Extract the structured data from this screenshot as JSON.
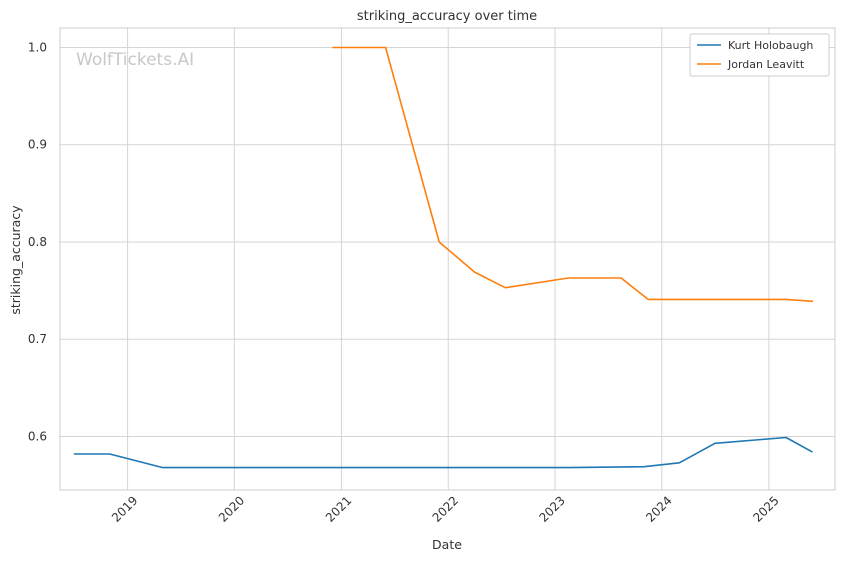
{
  "watermark": "WolfTickets.AI",
  "colors": {
    "background": "#ffffff",
    "grid": "#d5d5d5",
    "axes_frame": "#cccccc",
    "text": "#333333",
    "watermark": "#c8c8c8"
  },
  "chart_data": {
    "type": "line",
    "title": "striking_accuracy over time",
    "xlabel": "Date",
    "ylabel": "striking_accuracy",
    "xlim": [
      "2018-05-15",
      "2025-08-15"
    ],
    "ylim": [
      0.545,
      1.02
    ],
    "x_ticks": [
      "2019-01-01",
      "2020-01-01",
      "2021-01-01",
      "2022-01-01",
      "2023-01-01",
      "2024-01-01",
      "2025-01-01"
    ],
    "x_tick_labels": [
      "2019",
      "2020",
      "2021",
      "2022",
      "2023",
      "2024",
      "2025"
    ],
    "y_ticks": [
      0.6,
      0.7,
      0.8,
      0.9,
      1.0
    ],
    "y_tick_labels": [
      "0.6",
      "0.7",
      "0.8",
      "0.9",
      "1.0"
    ],
    "grid": true,
    "legend_position": "top-right",
    "series": [
      {
        "name": "Kurt Holobaugh",
        "color": "#1f77b4",
        "points": [
          [
            "2018-07-01",
            0.582
          ],
          [
            "2018-11-01",
            0.582
          ],
          [
            "2019-05-01",
            0.568
          ],
          [
            "2023-02-15",
            0.568
          ],
          [
            "2023-11-01",
            0.569
          ],
          [
            "2024-03-01",
            0.573
          ],
          [
            "2024-07-01",
            0.593
          ],
          [
            "2025-03-01",
            0.599
          ],
          [
            "2025-05-30",
            0.584
          ]
        ]
      },
      {
        "name": "Jordan Leavitt",
        "color": "#ff7f0e",
        "points": [
          [
            "2020-12-01",
            1.0
          ],
          [
            "2021-06-01",
            1.0
          ],
          [
            "2021-12-01",
            0.8
          ],
          [
            "2022-04-01",
            0.769
          ],
          [
            "2022-07-15",
            0.753
          ],
          [
            "2023-02-15",
            0.763
          ],
          [
            "2023-08-15",
            0.763
          ],
          [
            "2023-11-15",
            0.741
          ],
          [
            "2025-03-01",
            0.741
          ],
          [
            "2025-06-01",
            0.739
          ]
        ]
      }
    ]
  }
}
